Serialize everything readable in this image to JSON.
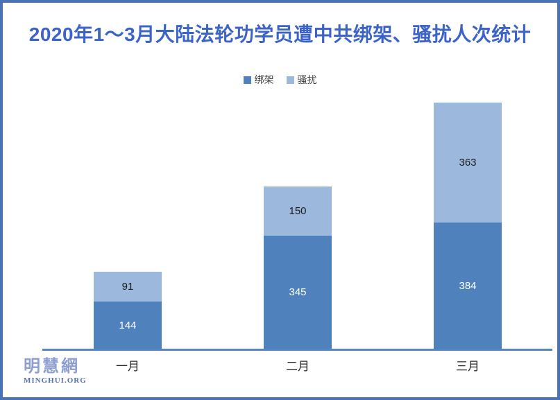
{
  "title": "2020年1～3月大陆法轮功学员遭中共绑架、骚扰人次统计",
  "title_color": "#3c64c8",
  "frame_color": "#4a72b8",
  "logo": {
    "chinese": "明慧網",
    "latin": "MINGHUI.ORG",
    "chinese_color": "#8d9ed2",
    "latin_color": "#5470ba"
  },
  "chart_data": {
    "type": "bar",
    "stacked": true,
    "title": "2020年1～3月大陆法轮功学员遭中共绑架、骚扰人次统计",
    "categories": [
      "一月",
      "二月",
      "三月"
    ],
    "series": [
      {
        "name": "绑架",
        "color": "#4f81bd",
        "label_color": "#ffffff",
        "values": [
          144,
          345,
          384
        ]
      },
      {
        "name": "骚扰",
        "color": "#9cb8dd",
        "label_color": "#1a1a1a",
        "values": [
          91,
          150,
          363
        ]
      }
    ],
    "totals": [
      235,
      495,
      747
    ],
    "legend_position": "top",
    "grid": false,
    "axis_line_color": "#5585c2",
    "xlabel": "",
    "ylabel": "",
    "ylim": [
      0,
      780
    ]
  }
}
